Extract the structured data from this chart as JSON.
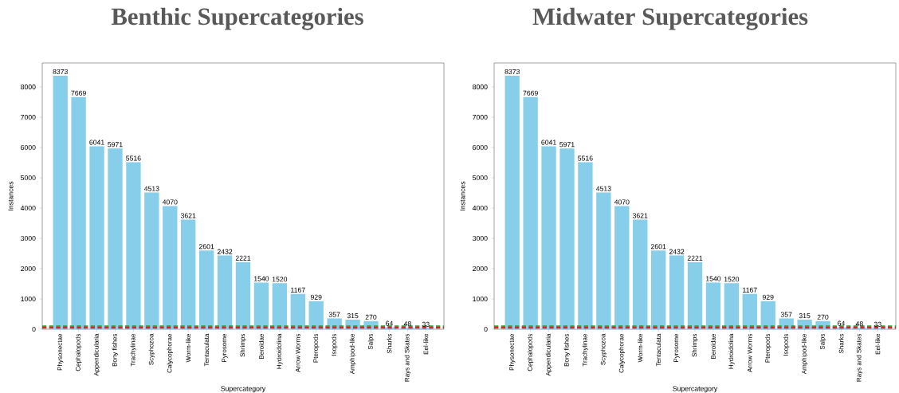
{
  "chart_data": [
    {
      "type": "bar",
      "title": "Benthic Supercategories",
      "xlabel": "Supercategory",
      "ylabel": "Instances",
      "categories": [
        "Physonectae",
        "Cephalopods",
        "Appendicularia",
        "Bony fishes",
        "Trachylinae",
        "Scyphozoa",
        "Calycophorae",
        "Worm-like",
        "Tentaculata",
        "Pyrosome",
        "Shrimps",
        "Beroidae",
        "Hydroidolina",
        "Arrow Worms",
        "Pteropods",
        "Isopods",
        "Amphipod-like",
        "Salps",
        "Sharks",
        "Rays and Skates",
        "Eel-like"
      ],
      "values": [
        8373,
        7669,
        6041,
        5971,
        5516,
        4513,
        4070,
        3621,
        2601,
        2432,
        2221,
        1540,
        1520,
        1167,
        929,
        357,
        315,
        270,
        64,
        48,
        33
      ],
      "color": "#87ceeb",
      "data_labels": true,
      "ylim": [
        0,
        8792
      ],
      "yticks": [
        0,
        1000,
        2000,
        3000,
        4000,
        5000,
        6000,
        7000,
        8000
      ],
      "ref_lines": [
        {
          "axis": "y",
          "value": 100,
          "color": "#2ca02c",
          "line_style": "dashed"
        },
        {
          "axis": "y",
          "value": 50,
          "color": "#d62728",
          "line_style": "dashed"
        }
      ]
    },
    {
      "type": "bar",
      "title": "Midwater Supercategories",
      "xlabel": "Supercategory",
      "ylabel": "Instances",
      "categories": [
        "Physonectae",
        "Cephalopods",
        "Appendicularia",
        "Bony fishes",
        "Trachylinae",
        "Scyphozoa",
        "Calycophorae",
        "Worm-like",
        "Tentaculata",
        "Pyrosome",
        "Shrimps",
        "Beroidae",
        "Hydroidolina",
        "Arrow Worms",
        "Pteropods",
        "Isopods",
        "Amphipod-like",
        "Salps",
        "Sharks",
        "Rays and Skates",
        "Eel-like"
      ],
      "values": [
        8373,
        7669,
        6041,
        5971,
        5516,
        4513,
        4070,
        3621,
        2601,
        2432,
        2221,
        1540,
        1520,
        1167,
        929,
        357,
        315,
        270,
        64,
        48,
        33
      ],
      "color": "#87ceeb",
      "data_labels": true,
      "ylim": [
        0,
        8792
      ],
      "yticks": [
        0,
        1000,
        2000,
        3000,
        4000,
        5000,
        6000,
        7000,
        8000
      ],
      "ref_lines": [
        {
          "axis": "y",
          "value": 100,
          "color": "#2ca02c",
          "line_style": "dashed"
        },
        {
          "axis": "y",
          "value": 50,
          "color": "#d62728",
          "line_style": "dashed"
        }
      ]
    }
  ]
}
